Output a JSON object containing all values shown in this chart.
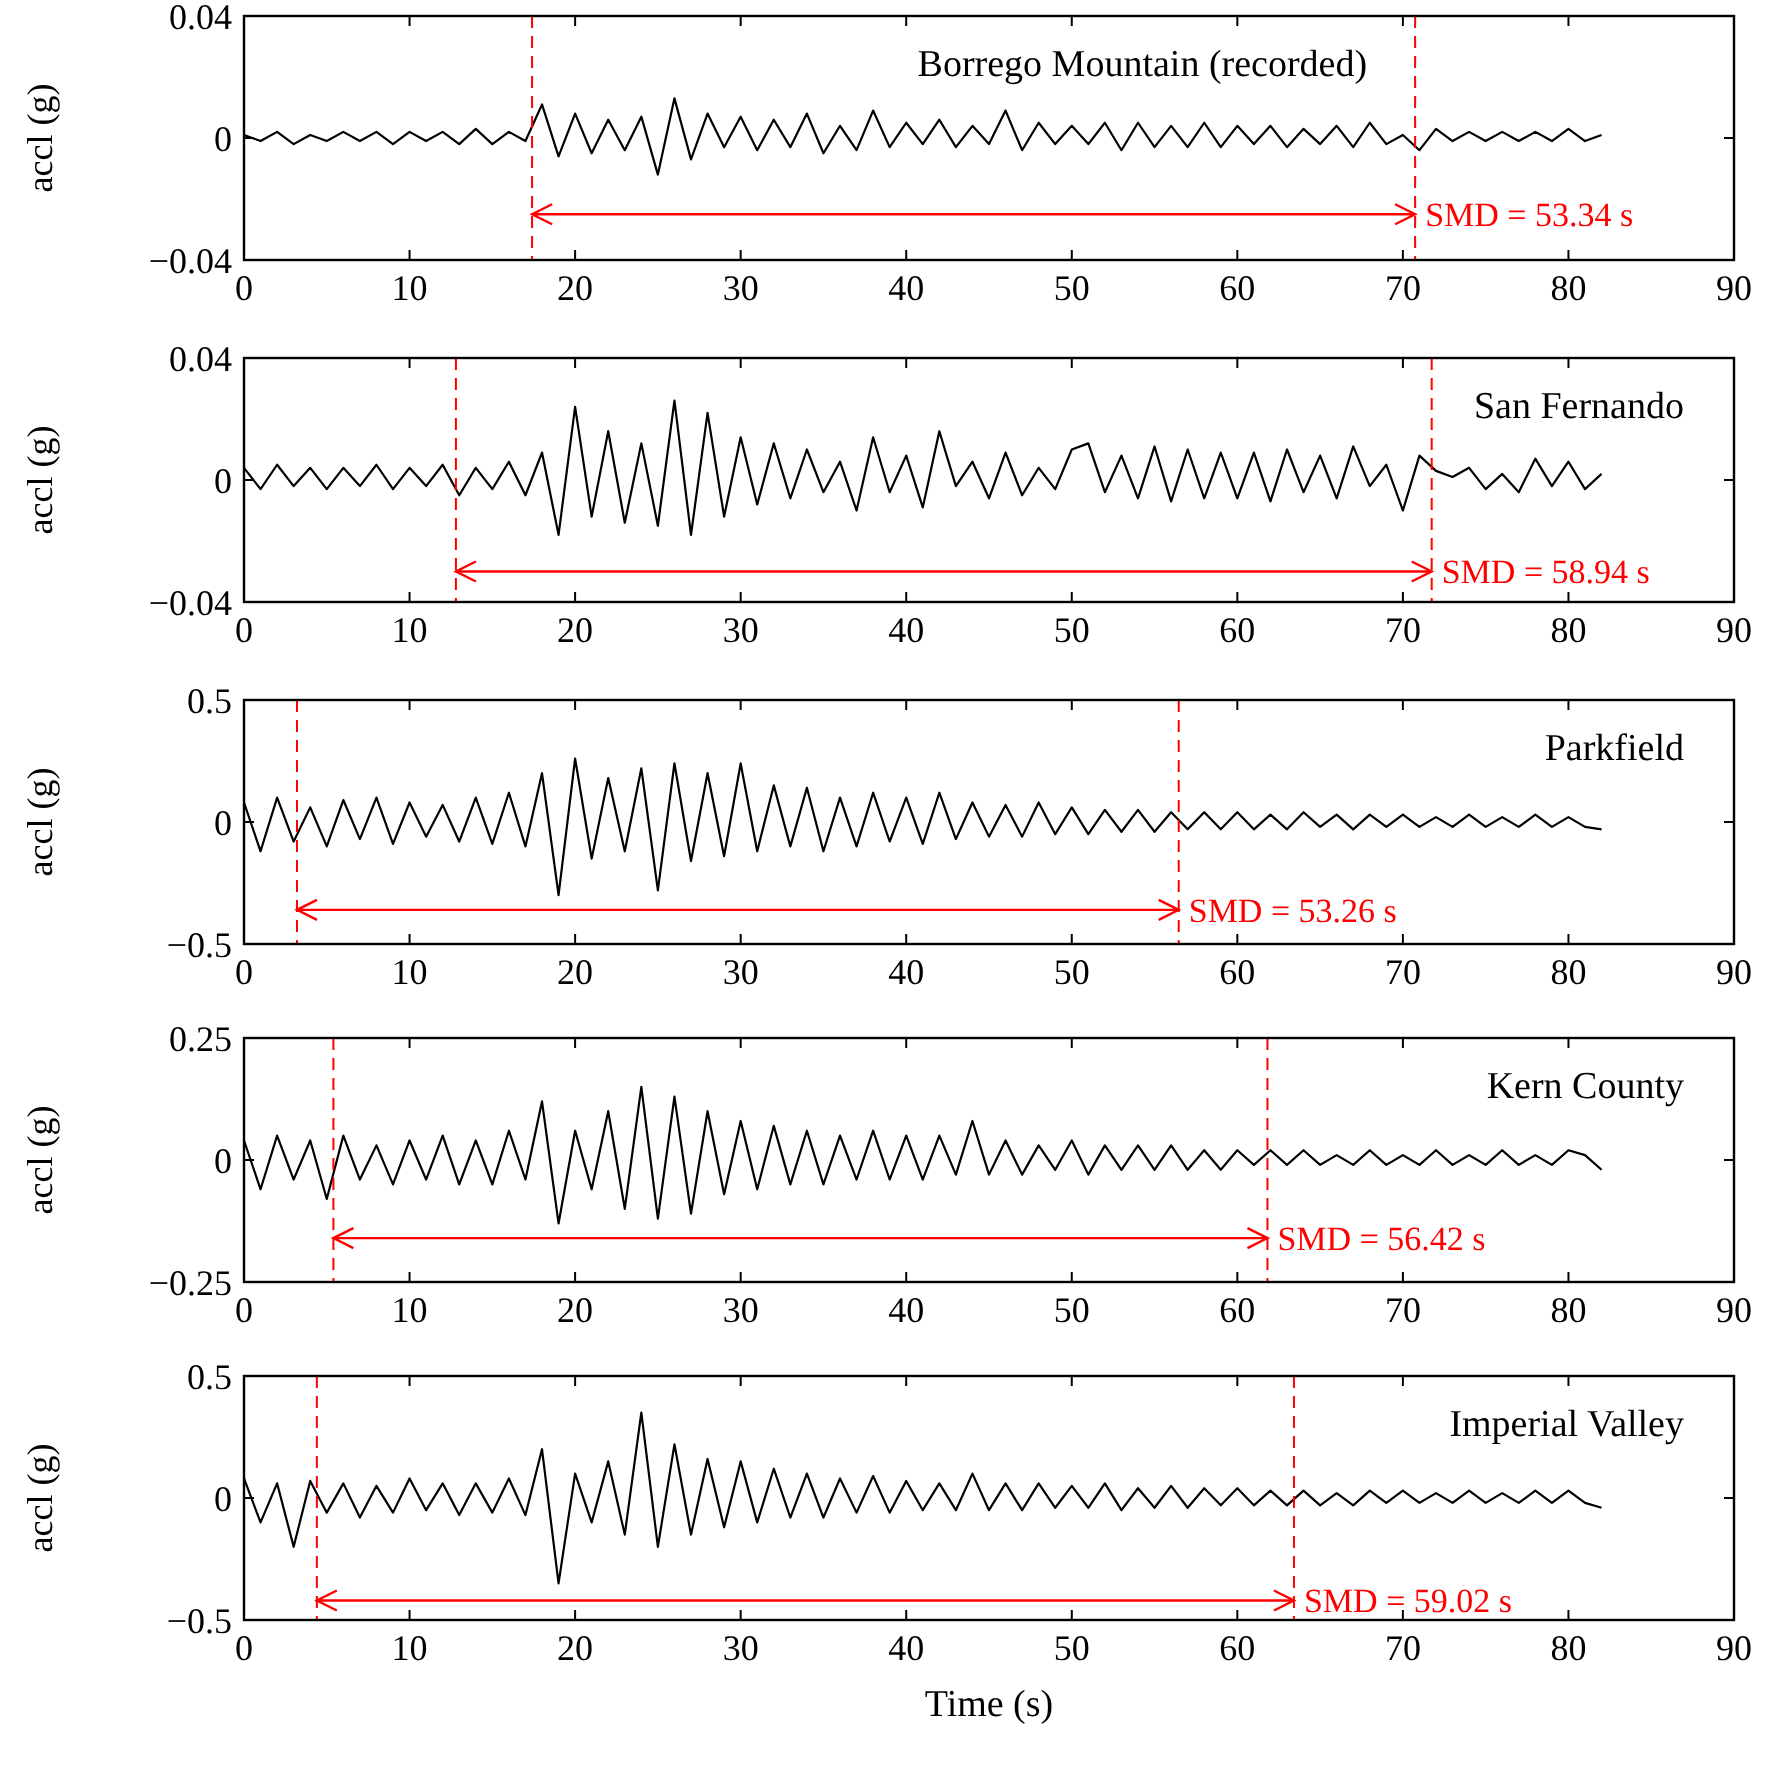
{
  "chart_data": [
    {
      "type": "line",
      "title": "Borrego Mountain (recorded)",
      "ylabel": "accl (g)",
      "xlim": [
        0,
        90
      ],
      "xticks": [
        0,
        10,
        20,
        30,
        40,
        50,
        60,
        70,
        80,
        90
      ],
      "ylim": [
        -0.04,
        0.04
      ],
      "yticks": [
        {
          "value": -0.04,
          "label": "−0.04"
        },
        0,
        0.04
      ],
      "grid": false,
      "legend": false,
      "line_style": "solid",
      "x": [
        0,
        1,
        2,
        3,
        4,
        5,
        6,
        7,
        8,
        9,
        10,
        11,
        12,
        13,
        14,
        15,
        16,
        17,
        18,
        19,
        20,
        21,
        22,
        23,
        24,
        25,
        26,
        27,
        28,
        29,
        30,
        31,
        32,
        33,
        34,
        35,
        36,
        37,
        38,
        39,
        40,
        41,
        42,
        43,
        44,
        45,
        46,
        47,
        48,
        49,
        50,
        51,
        52,
        53,
        54,
        55,
        56,
        57,
        58,
        59,
        60,
        61,
        62,
        63,
        64,
        65,
        66,
        67,
        68,
        69,
        70,
        71,
        72,
        73,
        74,
        75,
        76,
        77,
        78,
        79,
        80,
        81,
        82
      ],
      "series": [
        {
          "color": "#000000",
          "values": [
            0.001,
            -0.001,
            0.002,
            -0.002,
            0.001,
            -0.001,
            0.002,
            -0.001,
            0.002,
            -0.002,
            0.002,
            -0.001,
            0.002,
            -0.002,
            0.003,
            -0.002,
            0.002,
            -0.001,
            0.011,
            -0.006,
            0.008,
            -0.005,
            0.006,
            -0.004,
            0.007,
            -0.012,
            0.013,
            -0.007,
            0.008,
            -0.003,
            0.007,
            -0.004,
            0.006,
            -0.003,
            0.008,
            -0.005,
            0.004,
            -0.004,
            0.009,
            -0.003,
            0.005,
            -0.002,
            0.006,
            -0.003,
            0.004,
            -0.002,
            0.009,
            -0.004,
            0.005,
            -0.002,
            0.004,
            -0.002,
            0.005,
            -0.004,
            0.005,
            -0.003,
            0.004,
            -0.003,
            0.005,
            -0.003,
            0.004,
            -0.002,
            0.004,
            -0.003,
            0.003,
            -0.002,
            0.004,
            -0.003,
            0.005,
            -0.002,
            0.001,
            -0.004,
            0.003,
            -0.001,
            0.002,
            -0.001,
            0.002,
            -0.001,
            0.002,
            -0.001,
            0.003,
            -0.001,
            0.001
          ]
        }
      ],
      "ref_lines": [
        {
          "axis": "x",
          "value": 17.4,
          "color": "#ff0000",
          "line_style": "dashed"
        },
        {
          "axis": "x",
          "value": 70.74,
          "color": "#ff0000",
          "line_style": "dashed"
        }
      ],
      "annotations": [
        {
          "text": "SMD = 53.34 s",
          "x": 70.74,
          "y": -0.025
        }
      ]
    },
    {
      "type": "line",
      "title": "San Fernando",
      "ylabel": "accl (g)",
      "xlim": [
        0,
        90
      ],
      "xticks": [
        0,
        10,
        20,
        30,
        40,
        50,
        60,
        70,
        80,
        90
      ],
      "ylim": [
        -0.04,
        0.04
      ],
      "yticks": [
        {
          "value": -0.04,
          "label": "−0.04"
        },
        0,
        0.04
      ],
      "grid": false,
      "legend": false,
      "line_style": "solid",
      "x": [
        0,
        1,
        2,
        3,
        4,
        5,
        6,
        7,
        8,
        9,
        10,
        11,
        12,
        13,
        14,
        15,
        16,
        17,
        18,
        19,
        20,
        21,
        22,
        23,
        24,
        25,
        26,
        27,
        28,
        29,
        30,
        31,
        32,
        33,
        34,
        35,
        36,
        37,
        38,
        39,
        40,
        41,
        42,
        43,
        44,
        45,
        46,
        47,
        48,
        49,
        50,
        51,
        52,
        53,
        54,
        55,
        56,
        57,
        58,
        59,
        60,
        61,
        62,
        63,
        64,
        65,
        66,
        67,
        68,
        69,
        70,
        71,
        72,
        73,
        74,
        75,
        76,
        77,
        78,
        79,
        80,
        81,
        82
      ],
      "series": [
        {
          "color": "#000000",
          "values": [
            0.004,
            -0.003,
            0.005,
            -0.002,
            0.004,
            -0.003,
            0.004,
            -0.002,
            0.005,
            -0.003,
            0.004,
            -0.002,
            0.005,
            -0.005,
            0.004,
            -0.003,
            0.006,
            -0.005,
            0.009,
            -0.018,
            0.024,
            -0.012,
            0.016,
            -0.014,
            0.012,
            -0.015,
            0.026,
            -0.018,
            0.022,
            -0.012,
            0.014,
            -0.008,
            0.012,
            -0.006,
            0.01,
            -0.004,
            0.006,
            -0.01,
            0.014,
            -0.004,
            0.008,
            -0.009,
            0.016,
            -0.002,
            0.006,
            -0.006,
            0.009,
            -0.005,
            0.004,
            -0.003,
            0.01,
            0.012,
            -0.004,
            0.008,
            -0.006,
            0.011,
            -0.007,
            0.01,
            -0.006,
            0.009,
            -0.006,
            0.009,
            -0.007,
            0.01,
            -0.004,
            0.008,
            -0.006,
            0.011,
            -0.002,
            0.005,
            -0.01,
            0.008,
            0.003,
            0.001,
            0.004,
            -0.003,
            0.002,
            -0.004,
            0.007,
            -0.002,
            0.006,
            -0.003,
            0.002
          ]
        }
      ],
      "ref_lines": [
        {
          "axis": "x",
          "value": 12.8,
          "color": "#ff0000",
          "line_style": "dashed"
        },
        {
          "axis": "x",
          "value": 71.74,
          "color": "#ff0000",
          "line_style": "dashed"
        }
      ],
      "annotations": [
        {
          "text": "SMD = 58.94 s",
          "x": 71.74,
          "y": -0.03
        }
      ]
    },
    {
      "type": "line",
      "title": "Parkfield",
      "ylabel": "accl (g)",
      "xlim": [
        0,
        90
      ],
      "xticks": [
        0,
        10,
        20,
        30,
        40,
        50,
        60,
        70,
        80,
        90
      ],
      "ylim": [
        -0.5,
        0.5
      ],
      "yticks": [
        {
          "value": -0.5,
          "label": "−0.5"
        },
        0,
        0.5
      ],
      "grid": false,
      "legend": false,
      "line_style": "solid",
      "x": [
        0,
        1,
        2,
        3,
        4,
        5,
        6,
        7,
        8,
        9,
        10,
        11,
        12,
        13,
        14,
        15,
        16,
        17,
        18,
        19,
        20,
        21,
        22,
        23,
        24,
        25,
        26,
        27,
        28,
        29,
        30,
        31,
        32,
        33,
        34,
        35,
        36,
        37,
        38,
        39,
        40,
        41,
        42,
        43,
        44,
        45,
        46,
        47,
        48,
        49,
        50,
        51,
        52,
        53,
        54,
        55,
        56,
        57,
        58,
        59,
        60,
        61,
        62,
        63,
        64,
        65,
        66,
        67,
        68,
        69,
        70,
        71,
        72,
        73,
        74,
        75,
        76,
        77,
        78,
        79,
        80,
        81,
        82
      ],
      "series": [
        {
          "color": "#000000",
          "values": [
            0.08,
            -0.12,
            0.1,
            -0.08,
            0.06,
            -0.1,
            0.09,
            -0.07,
            0.1,
            -0.09,
            0.08,
            -0.06,
            0.07,
            -0.08,
            0.1,
            -0.09,
            0.12,
            -0.1,
            0.2,
            -0.3,
            0.26,
            -0.15,
            0.18,
            -0.12,
            0.22,
            -0.28,
            0.24,
            -0.16,
            0.2,
            -0.14,
            0.24,
            -0.12,
            0.15,
            -0.1,
            0.14,
            -0.12,
            0.1,
            -0.1,
            0.12,
            -0.08,
            0.1,
            -0.09,
            0.12,
            -0.07,
            0.08,
            -0.06,
            0.07,
            -0.06,
            0.08,
            -0.05,
            0.06,
            -0.05,
            0.05,
            -0.04,
            0.05,
            -0.04,
            0.04,
            -0.03,
            0.04,
            -0.03,
            0.04,
            -0.03,
            0.03,
            -0.03,
            0.04,
            -0.02,
            0.03,
            -0.03,
            0.03,
            -0.02,
            0.03,
            -0.02,
            0.02,
            -0.02,
            0.03,
            -0.02,
            0.02,
            -0.02,
            0.03,
            -0.02,
            0.02,
            -0.02,
            -0.03
          ]
        }
      ],
      "ref_lines": [
        {
          "axis": "x",
          "value": 3.2,
          "color": "#ff0000",
          "line_style": "dashed"
        },
        {
          "axis": "x",
          "value": 56.46,
          "color": "#ff0000",
          "line_style": "dashed"
        }
      ],
      "annotations": [
        {
          "text": "SMD = 53.26 s",
          "x": 56.46,
          "y": -0.36
        }
      ]
    },
    {
      "type": "line",
      "title": "Kern County",
      "ylabel": "accl (g)",
      "xlim": [
        0,
        90
      ],
      "xticks": [
        0,
        10,
        20,
        30,
        40,
        50,
        60,
        70,
        80,
        90
      ],
      "ylim": [
        -0.25,
        0.25
      ],
      "yticks": [
        {
          "value": -0.25,
          "label": "−0.25"
        },
        0,
        0.25
      ],
      "grid": false,
      "legend": false,
      "line_style": "solid",
      "x": [
        0,
        1,
        2,
        3,
        4,
        5,
        6,
        7,
        8,
        9,
        10,
        11,
        12,
        13,
        14,
        15,
        16,
        17,
        18,
        19,
        20,
        21,
        22,
        23,
        24,
        25,
        26,
        27,
        28,
        29,
        30,
        31,
        32,
        33,
        34,
        35,
        36,
        37,
        38,
        39,
        40,
        41,
        42,
        43,
        44,
        45,
        46,
        47,
        48,
        49,
        50,
        51,
        52,
        53,
        54,
        55,
        56,
        57,
        58,
        59,
        60,
        61,
        62,
        63,
        64,
        65,
        66,
        67,
        68,
        69,
        70,
        71,
        72,
        73,
        74,
        75,
        76,
        77,
        78,
        79,
        80,
        81,
        82
      ],
      "series": [
        {
          "color": "#000000",
          "values": [
            0.04,
            -0.06,
            0.05,
            -0.04,
            0.04,
            -0.08,
            0.05,
            -0.04,
            0.03,
            -0.05,
            0.04,
            -0.04,
            0.05,
            -0.05,
            0.04,
            -0.05,
            0.06,
            -0.04,
            0.12,
            -0.13,
            0.06,
            -0.06,
            0.1,
            -0.1,
            0.15,
            -0.12,
            0.13,
            -0.11,
            0.1,
            -0.07,
            0.08,
            -0.06,
            0.07,
            -0.05,
            0.06,
            -0.05,
            0.05,
            -0.04,
            0.06,
            -0.04,
            0.05,
            -0.04,
            0.05,
            -0.03,
            0.08,
            -0.03,
            0.04,
            -0.03,
            0.03,
            -0.02,
            0.04,
            -0.03,
            0.03,
            -0.02,
            0.03,
            -0.02,
            0.03,
            -0.02,
            0.02,
            -0.02,
            0.02,
            -0.01,
            0.02,
            -0.01,
            0.02,
            -0.01,
            0.01,
            -0.01,
            0.02,
            -0.01,
            0.01,
            -0.01,
            0.02,
            -0.01,
            0.01,
            -0.01,
            0.02,
            -0.01,
            0.01,
            -0.01,
            0.02,
            0.01,
            -0.02
          ]
        }
      ],
      "ref_lines": [
        {
          "axis": "x",
          "value": 5.4,
          "color": "#ff0000",
          "line_style": "dashed"
        },
        {
          "axis": "x",
          "value": 61.82,
          "color": "#ff0000",
          "line_style": "dashed"
        }
      ],
      "annotations": [
        {
          "text": "SMD = 56.42 s",
          "x": 61.82,
          "y": -0.16
        }
      ]
    },
    {
      "type": "line",
      "title": "Imperial Valley",
      "xlabel": "Time (s)",
      "ylabel": "accl (g)",
      "xlim": [
        0,
        90
      ],
      "xticks": [
        0,
        10,
        20,
        30,
        40,
        50,
        60,
        70,
        80,
        90
      ],
      "ylim": [
        -0.5,
        0.5
      ],
      "yticks": [
        {
          "value": -0.5,
          "label": "−0.5"
        },
        0,
        0.5
      ],
      "grid": false,
      "legend": false,
      "line_style": "solid",
      "x": [
        0,
        1,
        2,
        3,
        4,
        5,
        6,
        7,
        8,
        9,
        10,
        11,
        12,
        13,
        14,
        15,
        16,
        17,
        18,
        19,
        20,
        21,
        22,
        23,
        24,
        25,
        26,
        27,
        28,
        29,
        30,
        31,
        32,
        33,
        34,
        35,
        36,
        37,
        38,
        39,
        40,
        41,
        42,
        43,
        44,
        45,
        46,
        47,
        48,
        49,
        50,
        51,
        52,
        53,
        54,
        55,
        56,
        57,
        58,
        59,
        60,
        61,
        62,
        63,
        64,
        65,
        66,
        67,
        68,
        69,
        70,
        71,
        72,
        73,
        74,
        75,
        76,
        77,
        78,
        79,
        80,
        81,
        82
      ],
      "series": [
        {
          "color": "#000000",
          "values": [
            0.08,
            -0.1,
            0.06,
            -0.2,
            0.07,
            -0.06,
            0.06,
            -0.08,
            0.05,
            -0.06,
            0.08,
            -0.05,
            0.06,
            -0.07,
            0.06,
            -0.06,
            0.08,
            -0.07,
            0.2,
            -0.35,
            0.1,
            -0.1,
            0.15,
            -0.15,
            0.35,
            -0.2,
            0.22,
            -0.15,
            0.16,
            -0.12,
            0.15,
            -0.1,
            0.12,
            -0.08,
            0.1,
            -0.08,
            0.08,
            -0.06,
            0.09,
            -0.06,
            0.07,
            -0.05,
            0.06,
            -0.05,
            0.1,
            -0.05,
            0.06,
            -0.05,
            0.06,
            -0.04,
            0.05,
            -0.04,
            0.06,
            -0.05,
            0.04,
            -0.04,
            0.05,
            -0.04,
            0.04,
            -0.03,
            0.04,
            -0.03,
            0.03,
            -0.03,
            0.03,
            -0.03,
            0.02,
            -0.03,
            0.03,
            -0.02,
            0.03,
            -0.02,
            0.02,
            -0.02,
            0.03,
            -0.02,
            0.02,
            -0.02,
            0.03,
            -0.02,
            0.03,
            -0.02,
            -0.04
          ]
        }
      ],
      "ref_lines": [
        {
          "axis": "x",
          "value": 4.4,
          "color": "#ff0000",
          "line_style": "dashed"
        },
        {
          "axis": "x",
          "value": 63.42,
          "color": "#ff0000",
          "line_style": "dashed"
        }
      ],
      "annotations": [
        {
          "text": "SMD = 59.02 s",
          "x": 63.42,
          "y": -0.42
        }
      ]
    }
  ]
}
